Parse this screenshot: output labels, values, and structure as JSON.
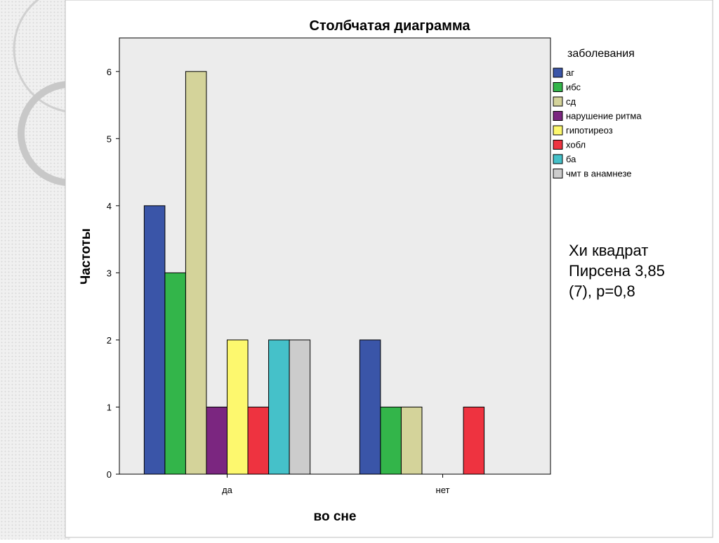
{
  "chart_data": {
    "type": "bar",
    "title": "Столбчатая диаграмма",
    "xlabel": "во сне",
    "ylabel": "Частоты",
    "ylim": [
      0,
      6.5
    ],
    "yticks": [
      0,
      1,
      2,
      3,
      4,
      5,
      6
    ],
    "categories": [
      "да",
      "нет"
    ],
    "legend_title": "заболевания",
    "legend_position": "right",
    "grid": false,
    "series": [
      {
        "name": "аг",
        "color": "#3a55a8",
        "values": [
          4,
          2
        ]
      },
      {
        "name": "ибс",
        "color": "#33b54a",
        "values": [
          3,
          1
        ]
      },
      {
        "name": "сд",
        "color": "#d4d39a",
        "values": [
          6,
          1
        ]
      },
      {
        "name": "нарушение ритма",
        "color": "#7b2680",
        "values": [
          1,
          0
        ]
      },
      {
        "name": "гипотиреоз",
        "color": "#fdf86e",
        "values": [
          2,
          0
        ]
      },
      {
        "name": "хобл",
        "color": "#ee3340",
        "values": [
          1,
          1
        ]
      },
      {
        "name": "ба",
        "color": "#45c1c9",
        "values": [
          2,
          0
        ]
      },
      {
        "name": "чмт в анамнезе",
        "color": "#cccccc",
        "values": [
          2,
          0
        ]
      }
    ]
  },
  "stat_text": "Хи квадрат\nПирсена 3,85\n(7), р=0,8"
}
